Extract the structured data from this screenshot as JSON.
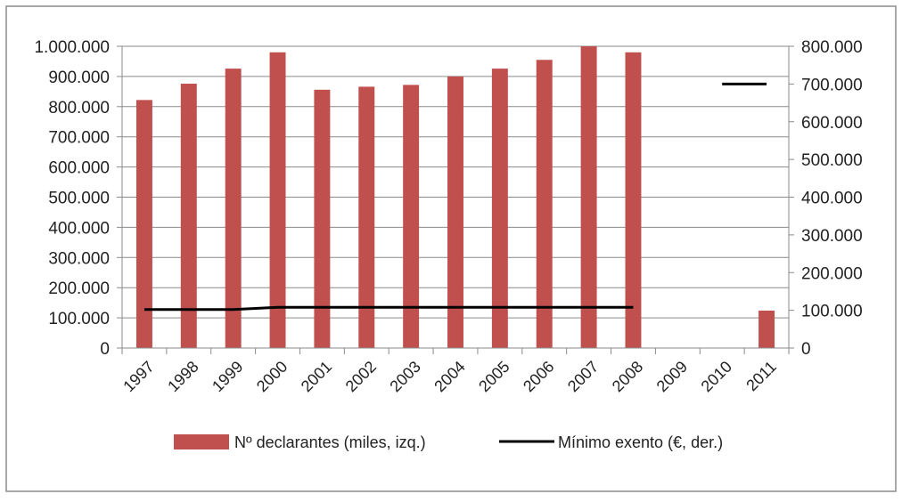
{
  "chart_data": {
    "type": "bar",
    "categories": [
      "1997",
      "1998",
      "1999",
      "2000",
      "2001",
      "2002",
      "2003",
      "2004",
      "2005",
      "2006",
      "2007",
      "2008",
      "2009",
      "2010",
      "2011"
    ],
    "series": [
      {
        "name": "Nº declarantes (miles, izq.)",
        "type": "bar",
        "axis": "left",
        "color": "#c0504d",
        "values": [
          822000,
          876000,
          926000,
          980000,
          856000,
          866000,
          872000,
          900000,
          926000,
          955000,
          1000000,
          980000,
          null,
          null,
          124000
        ]
      },
      {
        "name": "Mínimo exento (€, der.)",
        "type": "line",
        "axis": "right",
        "color": "#000000",
        "values": [
          102000,
          102000,
          102000,
          108000,
          108000,
          108000,
          108000,
          108000,
          108000,
          108000,
          108000,
          108000,
          null,
          700000,
          700000
        ]
      }
    ],
    "y_left": {
      "range": [
        0,
        1000000
      ],
      "ticks": [
        0,
        100000,
        200000,
        300000,
        400000,
        500000,
        600000,
        700000,
        800000,
        900000,
        1000000
      ],
      "tick_labels": [
        "0",
        "100.000",
        "200.000",
        "300.000",
        "400.000",
        "500.000",
        "600.000",
        "700.000",
        "800.000",
        "900.000",
        "1.000.000"
      ]
    },
    "y_right": {
      "range": [
        0,
        800000
      ],
      "ticks": [
        0,
        100000,
        200000,
        300000,
        400000,
        500000,
        600000,
        700000,
        800000
      ],
      "tick_labels": [
        "0",
        "100.000",
        "200.000",
        "300.000",
        "400.000",
        "500.000",
        "600.000",
        "700.000",
        "800.000"
      ]
    },
    "grid": true,
    "legend_position": "bottom"
  }
}
